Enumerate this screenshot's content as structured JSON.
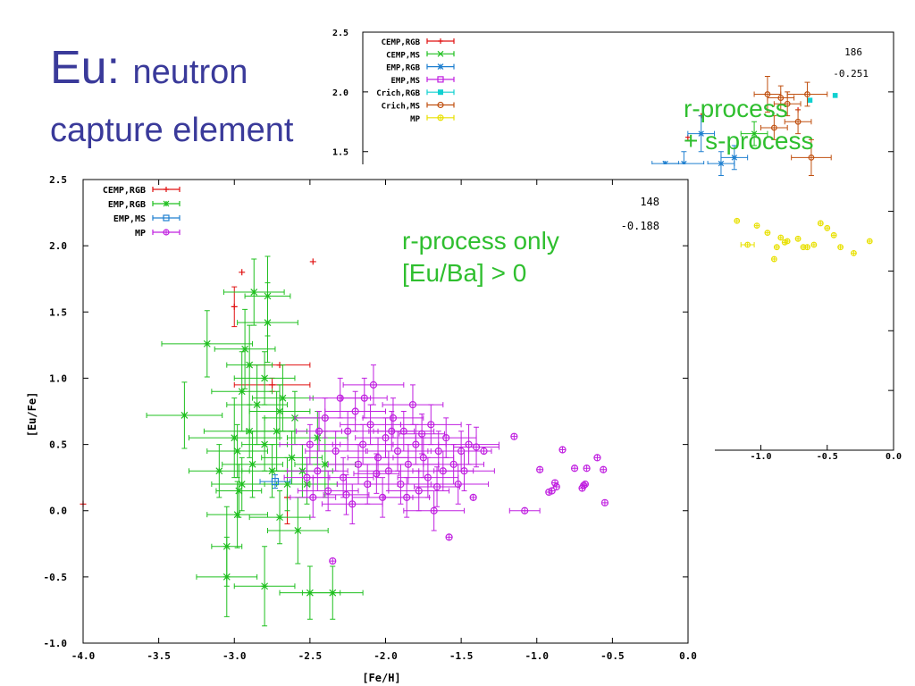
{
  "slide": {
    "title_main": "Eu:",
    "title_rest": "neutron",
    "title_line2": "capture element",
    "note_top_line1": "r-process",
    "note_top_line2": "+ s-process",
    "note_main_line1": "r-process only",
    "note_main_line2": "[Eu/Ba] > 0",
    "colors": {
      "title": "#3a3a9a",
      "note": "#2fbf2f"
    }
  },
  "chart_data": [
    {
      "type": "scatter",
      "xlabel": "[Fe/H]",
      "ylabel": "[Eu/Fe]",
      "xlim": [
        -4.0,
        0.0
      ],
      "ylim": [
        -1.0,
        2.5
      ],
      "xticks": [
        "-4.0",
        "-3.5",
        "-3.0",
        "-2.5",
        "-2.0",
        "-1.5",
        "-1.0",
        "-0.5",
        "0.0"
      ],
      "yticks": [
        "-1.0",
        "-0.5",
        "0.0",
        "0.5",
        "1.0",
        "1.5",
        "2.0",
        "2.5"
      ],
      "annotations": [
        "148",
        "-0.188"
      ],
      "legend_position": "top-left",
      "series": [
        {
          "name": "CEMP,RGB",
          "color": "#e01010",
          "marker": "plus",
          "points": [
            [
              -4.0,
              0.05,
              0,
              0
            ],
            [
              -3.0,
              1.54,
              0,
              0.15
            ],
            [
              -2.95,
              1.8,
              0,
              0
            ],
            [
              -2.75,
              0.95,
              0.25,
              0.05
            ],
            [
              -2.7,
              1.1,
              0.2,
              0
            ],
            [
              -2.48,
              1.88,
              0,
              0
            ],
            [
              -2.65,
              0.1,
              0,
              0.2
            ]
          ]
        },
        {
          "name": "EMP,RGB",
          "color": "#20c020",
          "marker": "star",
          "points": [
            [
              -3.33,
              0.72,
              0.25,
              0.25
            ],
            [
              -3.18,
              1.26,
              0.3,
              0.25
            ],
            [
              -3.05,
              -0.5,
              0.2,
              0.3
            ],
            [
              -3.05,
              -0.27,
              0.1,
              0.3
            ],
            [
              -3.0,
              0.55,
              0.3,
              0.3
            ],
            [
              -2.98,
              0.45,
              0.2,
              0.2
            ],
            [
              -2.98,
              -0.03,
              0.2,
              0.25
            ],
            [
              -2.95,
              0.2,
              0.2,
              0.2
            ],
            [
              -2.95,
              0.9,
              0.2,
              0.3
            ],
            [
              -2.93,
              1.22,
              0.2,
              0.3
            ],
            [
              -2.9,
              1.1,
              0.15,
              0.3
            ],
            [
              -2.9,
              0.6,
              0.3,
              0.2
            ],
            [
              -2.88,
              0.35,
              0.2,
              0.25
            ],
            [
              -2.87,
              1.65,
              0.2,
              0.25
            ],
            [
              -2.85,
              0.8,
              0.2,
              0.3
            ],
            [
              -2.8,
              1.0,
              0.2,
              0.2
            ],
            [
              -2.8,
              0.5,
              0.15,
              0.2
            ],
            [
              -2.8,
              -0.57,
              0.2,
              0.3
            ],
            [
              -2.78,
              1.42,
              0.2,
              0.3
            ],
            [
              -2.78,
              1.62,
              0.15,
              0.3
            ],
            [
              -2.75,
              0.3,
              0.2,
              0.2
            ],
            [
              -2.72,
              0.6,
              0.2,
              0.3
            ],
            [
              -2.7,
              -0.05,
              0.2,
              0.2
            ],
            [
              -2.7,
              0.75,
              0.2,
              0.2
            ],
            [
              -2.68,
              0.85,
              0.2,
              0.25
            ],
            [
              -2.65,
              0.2,
              0.15,
              0.2
            ],
            [
              -2.62,
              0.4,
              0.2,
              0.2
            ],
            [
              -2.6,
              0.7,
              0.2,
              0.2
            ],
            [
              -2.58,
              -0.15,
              0.2,
              0.25
            ],
            [
              -2.55,
              0.3,
              0.2,
              0.2
            ],
            [
              -2.52,
              0.2,
              0.2,
              0.15
            ],
            [
              -2.5,
              -0.62,
              0.2,
              0.2
            ],
            [
              -2.35,
              -0.62,
              0.2,
              0.2
            ],
            [
              -2.45,
              0.55,
              0.2,
              0.2
            ],
            [
              -2.4,
              0.35,
              0.2,
              0.25
            ],
            [
              -3.1,
              0.3,
              0.2,
              0.2
            ],
            [
              -2.97,
              0.15,
              0.15,
              0.2
            ]
          ]
        },
        {
          "name": "EMP,MS",
          "color": "#2080d0",
          "marker": "square",
          "points": [
            [
              -2.73,
              0.22,
              0.1,
              0.05
            ]
          ]
        },
        {
          "name": "MP",
          "color": "#c020e0",
          "marker": "cplus",
          "points": [
            [
              -2.5,
              0.5,
              0.2,
              0.15
            ],
            [
              -2.45,
              0.3,
              0.2,
              0.15
            ],
            [
              -2.4,
              0.7,
              0.2,
              0.15
            ],
            [
              -2.38,
              0.15,
              0.2,
              0.15
            ],
            [
              -2.35,
              -0.38,
              0,
              0
            ],
            [
              -2.33,
              0.45,
              0.2,
              0.15
            ],
            [
              -2.3,
              0.85,
              0.2,
              0.15
            ],
            [
              -2.28,
              0.25,
              0.2,
              0.15
            ],
            [
              -2.25,
              0.6,
              0.2,
              0.15
            ],
            [
              -2.22,
              0.05,
              0.2,
              0.15
            ],
            [
              -2.2,
              0.75,
              0.2,
              0.15
            ],
            [
              -2.18,
              0.35,
              0.2,
              0.15
            ],
            [
              -2.15,
              0.5,
              0.2,
              0.15
            ],
            [
              -2.12,
              0.2,
              0.2,
              0.15
            ],
            [
              -2.1,
              0.65,
              0.2,
              0.15
            ],
            [
              -2.08,
              0.95,
              0.2,
              0.15
            ],
            [
              -2.05,
              0.4,
              0.2,
              0.15
            ],
            [
              -2.02,
              0.1,
              0.2,
              0.15
            ],
            [
              -2.0,
              0.55,
              0.2,
              0.15
            ],
            [
              -1.98,
              0.3,
              0.2,
              0.15
            ],
            [
              -1.95,
              0.7,
              0.2,
              0.15
            ],
            [
              -1.92,
              0.45,
              0.2,
              0.15
            ],
            [
              -1.9,
              0.2,
              0.2,
              0.15
            ],
            [
              -1.88,
              0.6,
              0.2,
              0.15
            ],
            [
              -1.85,
              0.35,
              0.2,
              0.15
            ],
            [
              -1.82,
              0.8,
              0.2,
              0.15
            ],
            [
              -1.8,
              0.5,
              0.2,
              0.15
            ],
            [
              -1.78,
              0.15,
              0.2,
              0.15
            ],
            [
              -1.75,
              0.4,
              0.2,
              0.15
            ],
            [
              -1.72,
              0.25,
              0.2,
              0.15
            ],
            [
              -1.7,
              0.65,
              0.2,
              0.15
            ],
            [
              -1.68,
              0.0,
              0.2,
              0.15
            ],
            [
              -1.65,
              0.45,
              0.2,
              0.15
            ],
            [
              -1.62,
              0.3,
              0.2,
              0.15
            ],
            [
              -1.6,
              0.55,
              0.2,
              0.15
            ],
            [
              -1.58,
              -0.2,
              0,
              0
            ],
            [
              -1.55,
              0.35,
              0.2,
              0.15
            ],
            [
              -1.52,
              0.2,
              0.2,
              0.15
            ],
            [
              -1.5,
              0.45,
              0.2,
              0.15
            ],
            [
              -1.48,
              0.3,
              0.2,
              0.15
            ],
            [
              -1.45,
              0.5,
              0.2,
              0.15
            ],
            [
              -1.42,
              0.1,
              0,
              0
            ],
            [
              -1.4,
              0.48,
              0.15,
              0.15
            ],
            [
              -1.35,
              0.45,
              0,
              0
            ],
            [
              -1.15,
              0.56,
              0,
              0
            ],
            [
              -1.08,
              0.0,
              0.1,
              0
            ],
            [
              -0.98,
              0.31,
              0,
              0
            ],
            [
              -0.92,
              0.14,
              0,
              0
            ],
            [
              -0.9,
              0.15,
              0,
              0
            ],
            [
              -0.88,
              0.21,
              0,
              0
            ],
            [
              -0.87,
              0.18,
              0,
              0
            ],
            [
              -0.83,
              0.46,
              0,
              0
            ],
            [
              -0.75,
              0.32,
              0,
              0
            ],
            [
              -0.7,
              0.17,
              0,
              0
            ],
            [
              -0.69,
              0.19,
              0,
              0
            ],
            [
              -0.68,
              0.2,
              0,
              0
            ],
            [
              -0.67,
              0.32,
              0,
              0
            ],
            [
              -0.6,
              0.4,
              0,
              0
            ],
            [
              -0.56,
              0.31,
              0,
              0
            ],
            [
              -0.55,
              0.06,
              0,
              0
            ],
            [
              -2.52,
              0.25,
              0.15,
              0.15
            ],
            [
              -2.48,
              0.1,
              0.15,
              0.15
            ],
            [
              -2.44,
              0.6,
              0.15,
              0.15
            ],
            [
              -2.26,
              0.12,
              0.15,
              0.15
            ],
            [
              -2.14,
              0.85,
              0.15,
              0.15
            ],
            [
              -2.06,
              0.28,
              0.15,
              0.15
            ],
            [
              -1.96,
              0.6,
              0.15,
              0.15
            ],
            [
              -1.86,
              0.1,
              0.15,
              0.15
            ],
            [
              -1.76,
              0.58,
              0.15,
              0.15
            ],
            [
              -1.66,
              0.18,
              0.15,
              0.15
            ]
          ]
        }
      ]
    },
    {
      "type": "scatter",
      "xlim": [
        -4.0,
        0.0
      ],
      "ylim": [
        -1.0,
        2.5
      ],
      "yticks_visible": [
        "2.5",
        "2.0",
        "1.5"
      ],
      "xticks_visible": [
        "-1.0",
        "-0.5",
        "0.0"
      ],
      "annotations": [
        "186",
        "-0.251"
      ],
      "legend_position": "top-left",
      "series": [
        {
          "name": "CEMP,RGB",
          "color": "#e01010",
          "marker": "plus",
          "points": [
            [
              -1.45,
              1.8,
              0,
              0
            ],
            [
              -1.55,
              1.62,
              0,
              0
            ],
            [
              -0.72,
              1.85,
              0,
              0
            ]
          ]
        },
        {
          "name": "CEMP,MS",
          "color": "#20c020",
          "marker": "x",
          "points": [
            [
              -1.05,
              1.65,
              0.1,
              0.1
            ]
          ]
        },
        {
          "name": "EMP,RGB",
          "color": "#2080d0",
          "marker": "star",
          "points": [
            [
              -1.72,
              1.4,
              0.1,
              0
            ],
            [
              -1.58,
              1.4,
              0.15,
              0.1
            ],
            [
              -1.45,
              1.65,
              0.1,
              0.15
            ],
            [
              -1.3,
              1.4,
              0.1,
              0.1
            ],
            [
              -1.2,
              1.45,
              0.1,
              0.1
            ]
          ]
        },
        {
          "name": "EMP,MS",
          "color": "#c020e0",
          "marker": "square",
          "points": []
        },
        {
          "name": "Crich,RGB",
          "color": "#10d0d0",
          "marker": "filled-square",
          "points": [
            [
              -0.63,
              1.93,
              0,
              0
            ],
            [
              -0.44,
              1.97,
              0,
              0
            ]
          ]
        },
        {
          "name": "Crich,MS",
          "color": "#c05010",
          "marker": "circle",
          "points": [
            [
              -0.95,
              1.98,
              0.1,
              0.15
            ],
            [
              -0.85,
              1.95,
              0.1,
              0.1
            ],
            [
              -0.8,
              1.9,
              0.1,
              0.1
            ],
            [
              -0.72,
              1.75,
              0.1,
              0.1
            ],
            [
              -0.65,
              1.98,
              0.15,
              0.1
            ],
            [
              -0.62,
              1.45,
              0.15,
              0.15
            ],
            [
              -0.9,
              1.7,
              0.1,
              0.1
            ]
          ]
        },
        {
          "name": "MP",
          "color": "#e8e000",
          "marker": "cplus",
          "points": [
            [
              -1.18,
              0.92,
              0,
              0
            ],
            [
              -1.03,
              0.88,
              0,
              0
            ],
            [
              -0.95,
              0.82,
              0,
              0
            ],
            [
              -0.9,
              0.6,
              0,
              0
            ],
            [
              -0.88,
              0.7,
              0,
              0
            ],
            [
              -0.85,
              0.78,
              0,
              0
            ],
            [
              -0.8,
              0.75,
              0,
              0
            ],
            [
              -0.72,
              0.77,
              0,
              0
            ],
            [
              -0.65,
              0.7,
              0,
              0
            ],
            [
              -0.6,
              0.72,
              0,
              0
            ],
            [
              -0.55,
              0.9,
              0,
              0
            ],
            [
              -0.5,
              0.86,
              0,
              0
            ],
            [
              -0.45,
              0.8,
              0,
              0
            ],
            [
              -0.4,
              0.7,
              0,
              0
            ],
            [
              -0.3,
              0.65,
              0,
              0
            ],
            [
              -0.18,
              0.75,
              0,
              0
            ],
            [
              -1.1,
              0.72,
              0.05,
              0
            ],
            [
              -0.82,
              0.74,
              0,
              0
            ],
            [
              -0.68,
              0.7,
              0,
              0
            ]
          ]
        }
      ]
    }
  ]
}
